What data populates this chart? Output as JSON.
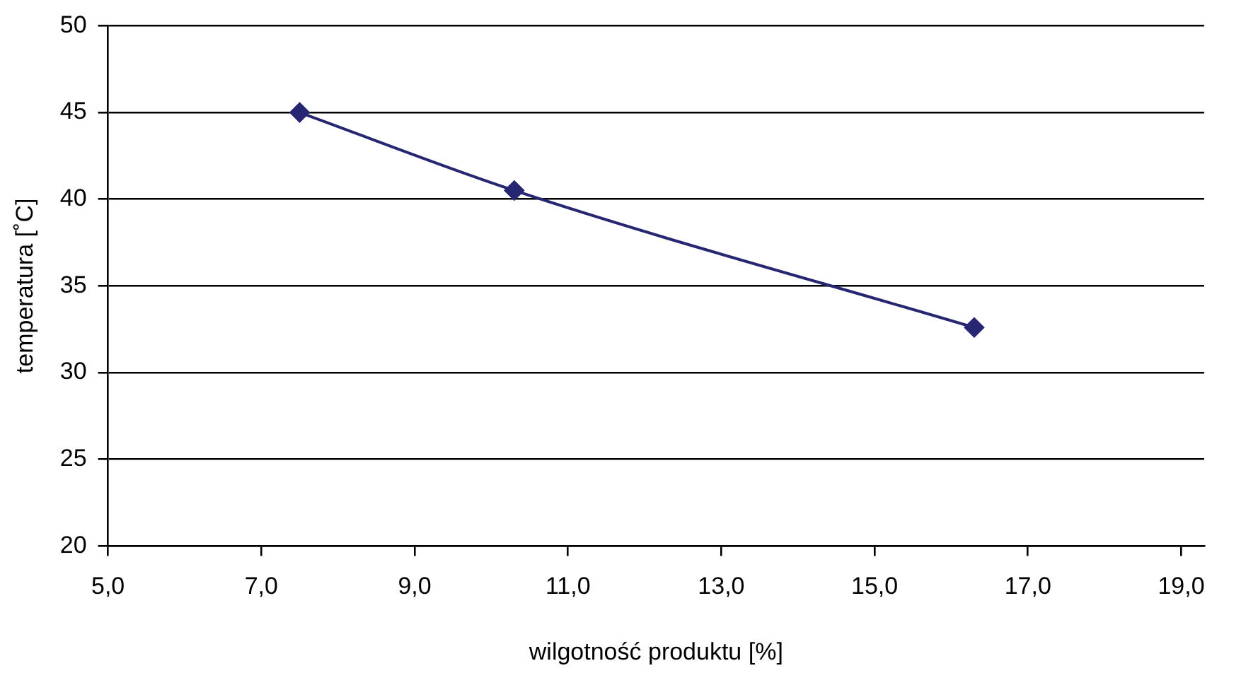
{
  "chart_data": {
    "type": "line",
    "xlabel": "wilgotność produktu [%]",
    "ylabel": "temperatura [˚C]",
    "x": [
      7.5,
      10.3,
      16.3
    ],
    "series": [
      {
        "color": "#262673",
        "values": [
          45,
          40.5,
          32.6
        ]
      }
    ],
    "xlim": [
      5,
      19.3
    ],
    "xticks": [
      {
        "value": 5,
        "label": "5,0"
      },
      {
        "value": 7,
        "label": "7,0"
      },
      {
        "value": 9,
        "label": "9,0"
      },
      {
        "value": 11,
        "label": "11,0"
      },
      {
        "value": 13,
        "label": "13,0"
      },
      {
        "value": 15,
        "label": "15,0"
      },
      {
        "value": 17,
        "label": "17,0"
      },
      {
        "value": 19,
        "label": "19,0"
      }
    ],
    "ylim": [
      20,
      50
    ],
    "yticks": [
      20,
      25,
      30,
      35,
      40,
      45,
      50
    ],
    "grid": "y",
    "legend": false,
    "marker": "diamond",
    "line_style": "solid"
  }
}
